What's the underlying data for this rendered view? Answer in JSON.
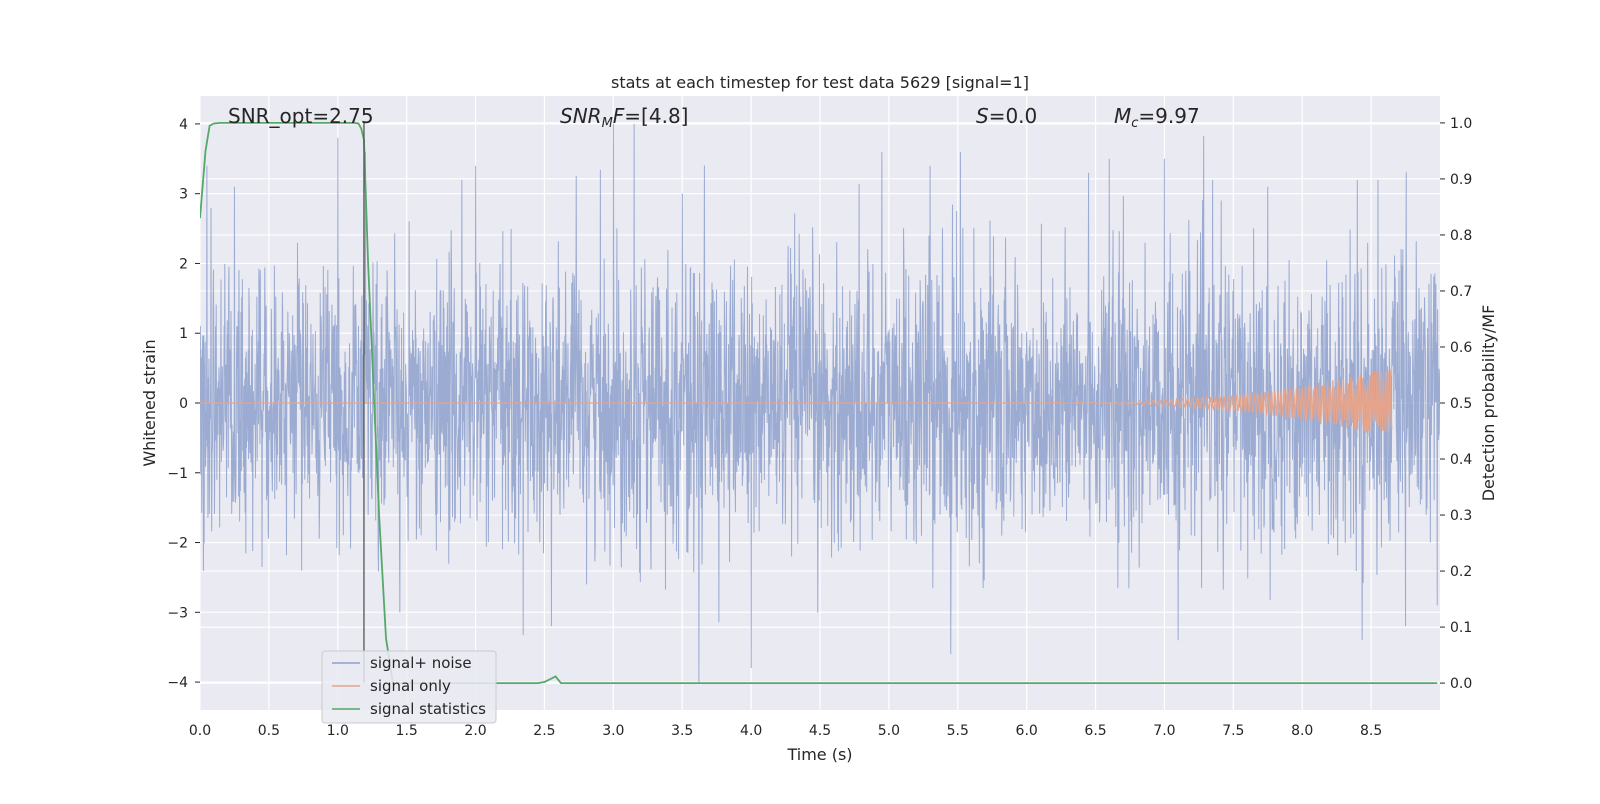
{
  "chart_data": {
    "type": "line",
    "title": "stats at each timestep for test data 5629 [signal=1]",
    "xlabel": "Time (s)",
    "ylabel": "Whitened strain",
    "y2label": "Detection probability/MF",
    "xlim": [
      0.0,
      9.0
    ],
    "ylim": [
      -4.4,
      4.4
    ],
    "y2lim": [
      -0.048,
      1.048
    ],
    "xticks": [
      0.0,
      0.5,
      1.0,
      1.5,
      2.0,
      2.5,
      3.0,
      3.5,
      4.0,
      4.5,
      5.0,
      5.5,
      6.0,
      6.5,
      7.0,
      7.5,
      8.0,
      8.5
    ],
    "xtick_labels": [
      "0.0",
      "0.5",
      "1.0",
      "1.5",
      "2.0",
      "2.5",
      "3.0",
      "3.5",
      "4.0",
      "4.5",
      "5.0",
      "5.5",
      "6.0",
      "6.5",
      "7.0",
      "7.5",
      "8.0",
      "8.5"
    ],
    "yticks": [
      -4,
      -3,
      -2,
      -1,
      0,
      1,
      2,
      3,
      4
    ],
    "ytick_labels": [
      "−4",
      "−3",
      "−2",
      "−1",
      "0",
      "1",
      "2",
      "3",
      "4"
    ],
    "y2ticks": [
      0.0,
      0.1,
      0.2,
      0.3,
      0.4,
      0.5,
      0.6,
      0.7,
      0.8,
      0.9,
      1.0
    ],
    "y2tick_labels": [
      "0.0",
      "0.1",
      "0.2",
      "0.3",
      "0.4",
      "0.5",
      "0.6",
      "0.7",
      "0.8",
      "0.9",
      "1.0"
    ],
    "grid": true,
    "legend_position": "lower-left",
    "annotations": {
      "snr_opt": "SNR_opt=2.75",
      "snr_mf_prefix": "SNR",
      "snr_mf_sub": "M",
      "snr_mf_mid": "F",
      "snr_mf_value": "=[4.8]",
      "s_symbol": "S",
      "s_value": "=0.0",
      "mc_symbol": "M",
      "mc_sub": "c",
      "mc_value": "=9.97"
    },
    "marker_line_x": 1.19,
    "series": [
      {
        "name": "signal+ noise",
        "axis": "left",
        "color": "#8da0cb",
        "envelope_sigma": 1.0,
        "peaks": [
          [
            0.05,
            3.4
          ],
          [
            0.25,
            3.1
          ],
          [
            1.0,
            3.8
          ],
          [
            1.2,
            3.6
          ],
          [
            1.45,
            -3.0
          ],
          [
            1.9,
            3.2
          ],
          [
            2.0,
            3.4
          ],
          [
            2.55,
            -3.2
          ],
          [
            3.0,
            4.0
          ],
          [
            3.15,
            4.0
          ],
          [
            3.5,
            3.0
          ],
          [
            3.62,
            -4.0
          ],
          [
            4.0,
            -3.8
          ],
          [
            4.95,
            3.6
          ],
          [
            5.3,
            3.4
          ],
          [
            5.45,
            -3.6
          ],
          [
            5.52,
            3.6
          ],
          [
            6.45,
            3.3
          ],
          [
            6.6,
            3.5
          ],
          [
            7.0,
            3.5
          ],
          [
            7.1,
            -3.4
          ],
          [
            7.35,
            3.2
          ],
          [
            7.75,
            3.1
          ],
          [
            8.4,
            3.2
          ],
          [
            8.55,
            3.2
          ],
          [
            8.75,
            -3.2
          ],
          [
            8.98,
            -2.9
          ]
        ]
      },
      {
        "name": "signal only",
        "axis": "left",
        "color": "#e5a48b",
        "chirp_start": 5.5,
        "chirp_end": 8.65,
        "chirp_peak_amplitude": 0.52
      },
      {
        "name": "signal statistics",
        "axis": "right",
        "color": "#55a868",
        "x": [
          0.0,
          0.04,
          0.07,
          0.1,
          0.15,
          0.2,
          0.5,
          1.0,
          1.12,
          1.15,
          1.17,
          1.19,
          1.22,
          1.3,
          1.35,
          1.4,
          2.4,
          2.45,
          2.5,
          2.55,
          2.58,
          2.62,
          2.7,
          8.98
        ],
        "y": [
          0.83,
          0.95,
          0.995,
          0.999,
          1.0,
          1.0,
          1.0,
          1.0,
          1.0,
          0.999,
          0.99,
          0.97,
          0.75,
          0.3,
          0.08,
          0.0,
          0.0,
          0.0,
          0.002,
          0.008,
          0.012,
          0.0,
          0.0,
          0.0
        ]
      }
    ]
  }
}
